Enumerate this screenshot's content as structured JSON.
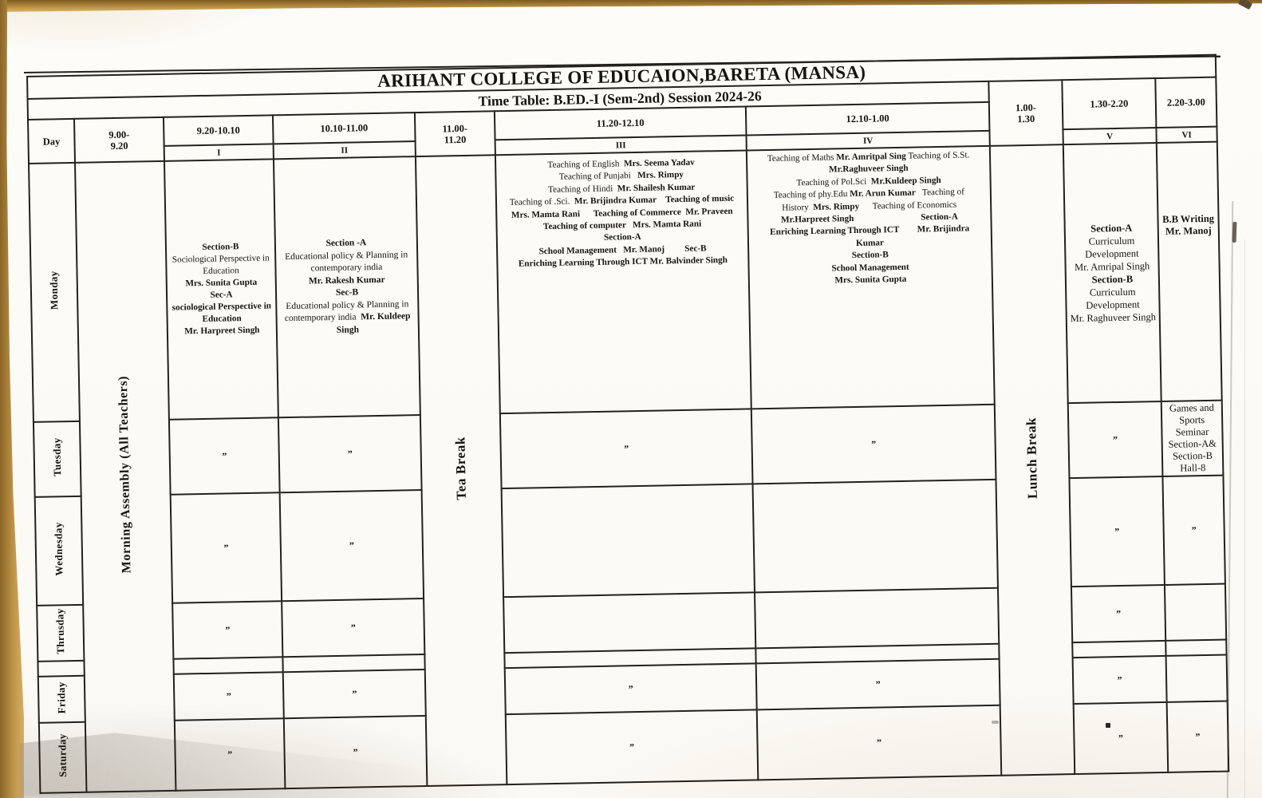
{
  "title": "ARIHANT COLLEGE OF EDUCAION,BARETA (MANSA)",
  "subtitle": "Time Table: B.ED.-I (Sem-2nd) Session 2024-26",
  "head": {
    "day": "Day",
    "t1a": "9.00-",
    "t1b": "9.20",
    "t2": "9.20-10.10",
    "t3": "10.10-11.00",
    "t4a": "11.00-",
    "t4b": "11.20",
    "t5": "11.20-12.10",
    "t6": "12.10-1.00",
    "t7a": "1.00-",
    "t7b": "1.30",
    "t8": "1.30-2.20",
    "t9": "2.20-3.00"
  },
  "periods": {
    "p1": "I",
    "p2": "II",
    "p3": "III",
    "p4": "IV",
    "p5": "V",
    "p6": "VI"
  },
  "breaks": {
    "assembly": "Morning Assembly (All Teachers)",
    "tea": "Tea Break",
    "lunch": "Lunch Break"
  },
  "days": {
    "mon": "Monday",
    "tue": "Tuesday",
    "wed": "Wednesday",
    "thu": "Thrusday",
    "fri": "Friday",
    "sat": "Saturday"
  },
  "ditto": "”",
  "cells": {
    "mon": {
      "p1": [
        [
          [
            "Section-B",
            1
          ]
        ],
        [
          [
            "Sociological Perspective in",
            0
          ]
        ],
        [
          [
            "Education",
            0
          ]
        ],
        [
          [
            "Mrs. Sunita Gupta",
            1
          ]
        ],
        [
          [
            "Sec-A",
            1
          ]
        ],
        [
          [
            "sociological Perspective in",
            1
          ]
        ],
        [
          [
            "Education",
            1
          ]
        ],
        [
          [
            "Mr. Harpreet Singh",
            1
          ]
        ]
      ],
      "p2": [
        [
          [
            "Section -A",
            1
          ]
        ],
        [
          [
            "Educational policy & Planning in",
            0
          ]
        ],
        [
          [
            "contemporary india",
            0
          ]
        ],
        [
          [
            "Mr. Rakesh Kumar",
            1
          ]
        ],
        [
          [
            "Sec-B",
            1
          ]
        ],
        [
          [
            "Educational policy & Planning in",
            0
          ]
        ],
        [
          [
            "contemporary india  ",
            0
          ],
          [
            "Mr. Kuldeep",
            1
          ]
        ],
        [
          [
            "Singh",
            1
          ]
        ]
      ],
      "p3": [
        [
          [
            "Teaching of English  ",
            0
          ],
          [
            "Mrs. Seema Yadav",
            1
          ]
        ],
        [
          [
            "Teaching of Punjabi   ",
            0
          ],
          [
            "Mrs. Rimpy",
            1
          ]
        ],
        [
          [
            "Teaching of Hindi  ",
            0
          ],
          [
            "Mr. Shailesh Kumar",
            1
          ]
        ],
        [
          [
            "Teaching of .Sci.  ",
            0
          ],
          [
            "Mr. Brijindra Kumar",
            1
          ],
          [
            "    ",
            0
          ],
          [
            "Teaching of music",
            1
          ]
        ],
        [
          [
            "Mrs. Mamta Rani",
            1
          ],
          [
            "      ",
            0
          ],
          [
            "Teaching of Commerce  Mr. Praveen",
            1
          ]
        ],
        [
          [
            "Teaching of computer   Mrs. Mamta Rani",
            1
          ]
        ],
        [
          [
            "Section-A",
            1
          ]
        ],
        [
          [
            "School Management   Mr. Manoj",
            1
          ],
          [
            "         ",
            0
          ],
          [
            "Sec-B",
            1
          ]
        ],
        [
          [
            "Enriching Learning Through ICT Mr. Balvinder Singh",
            1
          ]
        ]
      ],
      "p4": [
        [
          [
            "Teaching of Maths ",
            0
          ],
          [
            "Mr. Amritpal Sing",
            1
          ],
          [
            " Teaching of S.St.",
            0
          ]
        ],
        [
          [
            "Mr.Raghuveer Singh",
            1
          ]
        ],
        [
          [
            "Teaching of Pol.Sci  ",
            0
          ],
          [
            "Mr.Kuldeep Singh",
            1
          ]
        ],
        [
          [
            "Teaching of phy.Edu ",
            0
          ],
          [
            "Mr. Arun Kumar",
            1
          ],
          [
            "   Teaching of",
            0
          ]
        ],
        [
          [
            "History  ",
            0
          ],
          [
            "Mrs. Rimpy",
            1
          ],
          [
            "      Teaching of Economics",
            0
          ]
        ],
        [
          [
            "Mr.Harpreet Singh",
            1
          ],
          [
            "                              ",
            0
          ],
          [
            "Section-A",
            1
          ]
        ],
        [
          [
            "Enriching Learning Through ICT",
            1
          ],
          [
            "        ",
            0
          ],
          [
            "Mr. Brijindra",
            1
          ]
        ],
        [
          [
            "Kumar",
            1
          ]
        ],
        [
          [
            "Section-B",
            1
          ]
        ],
        [
          [
            "School Management",
            1
          ]
        ],
        [
          [
            "Mrs. Sunita Gupta",
            1
          ]
        ]
      ],
      "p5": [
        [
          [
            "Section-A",
            1
          ]
        ],
        [
          [
            "Curriculum",
            0
          ]
        ],
        [
          [
            "Development",
            0
          ]
        ],
        [
          [
            "Mr. Amripal Singh",
            0
          ]
        ],
        [
          [
            "Section-B",
            1
          ]
        ],
        [
          [
            "Curriculum",
            0
          ]
        ],
        [
          [
            "Development",
            0
          ]
        ],
        [
          [
            "Mr. Raghuveer Singh",
            0
          ]
        ]
      ],
      "p6": [
        [
          [
            "B.B Writing",
            1
          ]
        ],
        [
          [
            "Mr. Manoj",
            1
          ]
        ]
      ]
    },
    "tue": {
      "p6": [
        [
          [
            "Games and",
            0
          ]
        ],
        [
          [
            "Sports",
            0
          ]
        ],
        [
          [
            "Seminar",
            0
          ]
        ],
        [
          [
            "Section-A&",
            0
          ]
        ],
        [
          [
            "Section-B",
            0
          ]
        ],
        [
          [
            "Hall-8",
            0
          ]
        ]
      ]
    }
  }
}
